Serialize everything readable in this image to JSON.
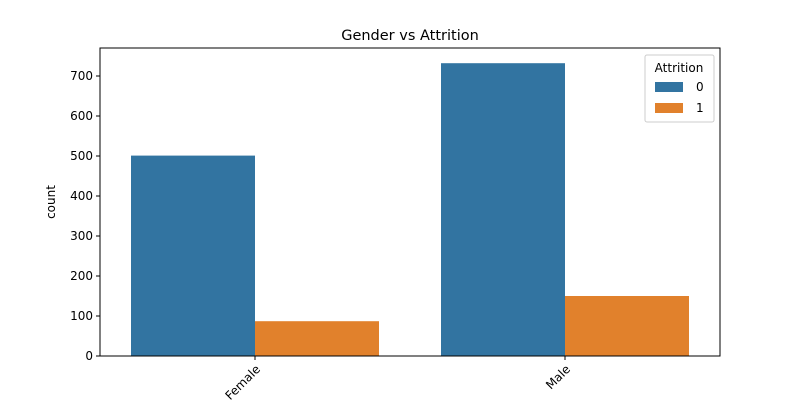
{
  "chart_data": {
    "type": "bar",
    "title": "Gender vs Attrition",
    "xlabel": "",
    "ylabel": "count",
    "categories": [
      "Female",
      "Male"
    ],
    "series": [
      {
        "name": "0",
        "values": [
          501,
          732
        ],
        "color": "#3274a1"
      },
      {
        "name": "1",
        "values": [
          87,
          150
        ],
        "color": "#e1812c"
      }
    ],
    "ylim": [
      0,
      770
    ],
    "yticks": [
      0,
      100,
      200,
      300,
      400,
      500,
      600,
      700
    ],
    "legend": {
      "title": "Attrition",
      "placement": "top-right"
    },
    "grid": false
  }
}
